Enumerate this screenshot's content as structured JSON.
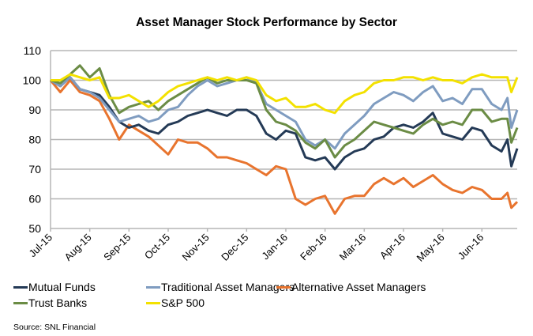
{
  "chart_data": {
    "type": "line",
    "title": "Asset Manager Stock Performance by Sector",
    "xlabel": "",
    "ylabel": "",
    "ylim": [
      50,
      110
    ],
    "yticks": [
      50,
      60,
      70,
      80,
      90,
      100,
      110
    ],
    "ytick_labels": [
      "50",
      "60",
      "70",
      "80",
      "90",
      "100",
      "110"
    ],
    "x_tick_labels": [
      "Jul-15",
      "Aug-15",
      "Sep-15",
      "Oct-15",
      "Nov-15",
      "Dec-15",
      "Jan-16",
      "Feb-16",
      "Mar-16",
      "Apr-16",
      "May-16",
      "Jun-16"
    ],
    "xlim_months": [
      0,
      11.9
    ],
    "grid": "horizontal",
    "legend_position": "bottom",
    "x": [
      0,
      0.25,
      0.5,
      0.75,
      1.0,
      1.25,
      1.5,
      1.75,
      2.0,
      2.25,
      2.5,
      2.75,
      3.0,
      3.25,
      3.5,
      3.75,
      4.0,
      4.25,
      4.5,
      4.75,
      5.0,
      5.25,
      5.5,
      5.75,
      6.0,
      6.25,
      6.5,
      6.75,
      7.0,
      7.25,
      7.5,
      7.75,
      8.0,
      8.25,
      8.5,
      8.75,
      9.0,
      9.25,
      9.5,
      9.75,
      10.0,
      10.25,
      10.5,
      10.75,
      11.0,
      11.25,
      11.5,
      11.65,
      11.75,
      11.9
    ],
    "series": [
      {
        "name": "Mutual Funds",
        "color": "#243a56",
        "values": [
          100,
          98,
          101,
          97,
          96,
          95,
          91,
          86,
          84,
          85,
          83,
          82,
          85,
          86,
          88,
          89,
          90,
          89,
          88,
          90,
          90,
          88,
          82,
          80,
          83,
          82,
          74,
          73,
          74,
          70,
          74,
          76,
          77,
          80,
          81,
          84,
          85,
          84,
          86,
          89,
          82,
          81,
          80,
          84,
          83,
          78,
          76,
          80,
          71,
          77
        ]
      },
      {
        "name": "Traditional Asset Managers",
        "color": "#7f9cc0",
        "values": [
          100,
          98,
          101,
          97,
          96,
          94,
          90,
          86,
          87,
          88,
          86,
          87,
          90,
          91,
          95,
          98,
          100,
          98,
          99,
          100,
          101,
          99,
          92,
          90,
          88,
          86,
          80,
          78,
          80,
          77,
          82,
          85,
          88,
          92,
          94,
          96,
          95,
          93,
          96,
          98,
          93,
          94,
          92,
          97,
          97,
          92,
          90,
          94,
          84,
          90
        ]
      },
      {
        "name": "Alternative Asset Managers",
        "color": "#e8742e",
        "values": [
          100,
          96,
          100,
          96,
          95,
          93,
          87,
          80,
          85,
          83,
          81,
          78,
          75,
          80,
          79,
          79,
          77,
          74,
          74,
          73,
          72,
          70,
          68,
          71,
          70,
          60,
          58,
          60,
          61,
          55,
          60,
          61,
          61,
          65,
          67,
          65,
          67,
          64,
          66,
          68,
          65,
          63,
          62,
          64,
          63,
          60,
          60,
          62,
          57,
          59
        ]
      },
      {
        "name": "Trust Banks",
        "color": "#6b8c45",
        "values": [
          100,
          99,
          102,
          105,
          101,
          104,
          95,
          89,
          91,
          92,
          93,
          90,
          93,
          95,
          97,
          99,
          101,
          99,
          100,
          100,
          100,
          99,
          90,
          86,
          85,
          83,
          79,
          77,
          80,
          74,
          78,
          80,
          83,
          86,
          85,
          84,
          83,
          82,
          85,
          87,
          85,
          86,
          85,
          90,
          90,
          86,
          87,
          87,
          79,
          84
        ]
      },
      {
        "name": "S&P 500",
        "color": "#f3e100",
        "values": [
          100,
          100,
          102,
          101,
          100,
          101,
          94,
          94,
          95,
          93,
          91,
          93,
          96,
          98,
          99,
          100,
          101,
          100,
          101,
          100,
          101,
          100,
          95,
          93,
          94,
          91,
          91,
          92,
          90,
          89,
          93,
          95,
          96,
          99,
          100,
          100,
          101,
          101,
          100,
          101,
          100,
          100,
          99,
          101,
          102,
          101,
          101,
          101,
          96,
          101
        ]
      }
    ]
  },
  "source": "Source: SNL Financial"
}
